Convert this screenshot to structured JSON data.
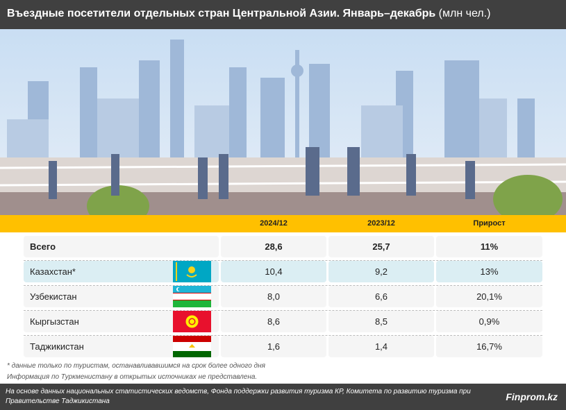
{
  "title": {
    "bold": "Въездные посетители отдельных стран Центральной Азии. Январь–декабрь",
    "unit": "(млн чел.)"
  },
  "table": {
    "headers": [
      "",
      "2024/12",
      "2023/12",
      "Прирост"
    ],
    "rows": [
      {
        "label": "Всего",
        "v2024": "28,6",
        "v2023": "25,7",
        "growth": "11%",
        "flag": "",
        "bold": true
      },
      {
        "label": "Казахстан*",
        "v2024": "10,4",
        "v2023": "9,2",
        "growth": "13%",
        "flag": "kazakhstan-flag"
      },
      {
        "label": "Узбекистан",
        "v2024": "8,0",
        "v2023": "6,6",
        "growth": "20,1%",
        "flag": "uzbekistan-flag"
      },
      {
        "label": "Кыргызстан",
        "v2024": "8,6",
        "v2023": "8,5",
        "growth": "0,9%",
        "flag": "kyrgyzstan-flag"
      },
      {
        "label": "Таджикистан",
        "v2024": "1,6",
        "v2023": "1,4",
        "growth": "16,7%",
        "flag": "tajikistan-flag"
      }
    ]
  },
  "notes": [
    "* данные только по туристам, останавливавшимся на срок более одного дня",
    "Информация по Туркменистану в открытых источниках не представлена."
  ],
  "footer": {
    "source": "На основе данных национальных статистических ведомств, Фонда поддержки развития туризма КР, Комитета по развитию туризма при Правительстве Таджикистана",
    "brand": "Finprom.kz"
  },
  "colors": {
    "header": "#ffc000",
    "dark": "#404040",
    "highlight": "#dbeef3",
    "row": "#f5f5f5"
  }
}
